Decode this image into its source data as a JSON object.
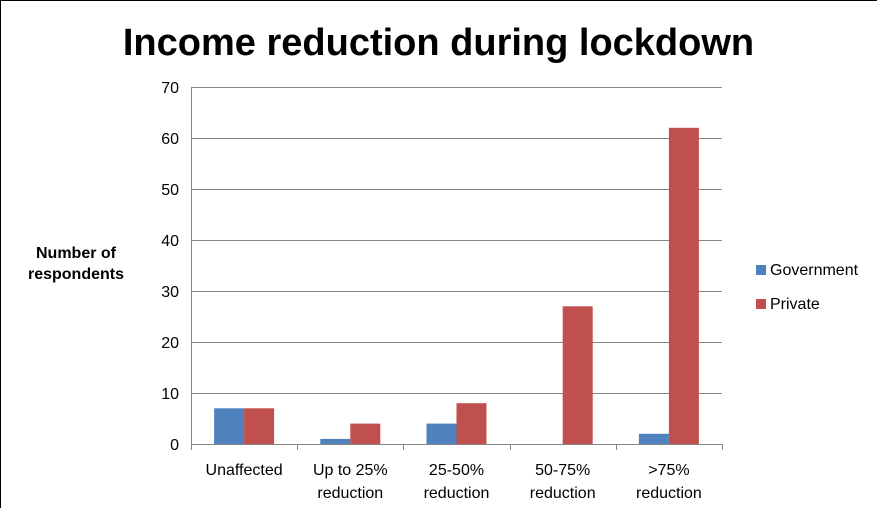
{
  "chart_data": {
    "type": "bar",
    "title": "Income reduction during lockdown",
    "ylabel": "Number of respondents",
    "xlabel": "",
    "categories": [
      [
        "Unaffected"
      ],
      [
        "Up to 25%",
        "reduction"
      ],
      [
        "25-50%",
        "reduction"
      ],
      [
        "50-75%",
        "reduction"
      ],
      [
        ">75%",
        "reduction"
      ]
    ],
    "series": [
      {
        "name": "Government",
        "color": "#4f81bd",
        "values": [
          7,
          1,
          4,
          0,
          2
        ]
      },
      {
        "name": "Private",
        "color": "#c0504d",
        "values": [
          7,
          4,
          8,
          27,
          62
        ]
      }
    ],
    "ylim": [
      0,
      70
    ],
    "yticks": [
      0,
      10,
      20,
      30,
      40,
      50,
      60,
      70
    ],
    "grid": true,
    "legend_position": "right"
  }
}
